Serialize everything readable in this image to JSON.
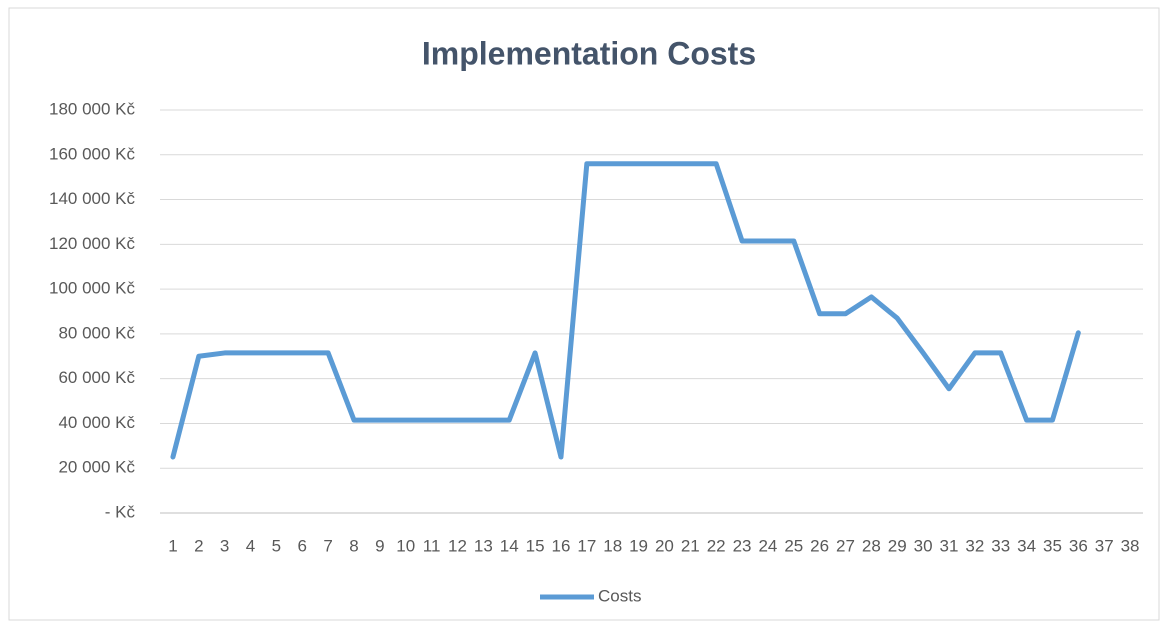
{
  "chart_data": {
    "type": "line",
    "title": "Implementation Costs",
    "categories": [
      "1",
      "2",
      "3",
      "4",
      "5",
      "6",
      "7",
      "8",
      "9",
      "10",
      "11",
      "12",
      "13",
      "14",
      "15",
      "16",
      "17",
      "18",
      "19",
      "20",
      "21",
      "22",
      "23",
      "24",
      "25",
      "26",
      "27",
      "28",
      "29",
      "30",
      "31",
      "32",
      "33",
      "34",
      "35",
      "36",
      "37",
      "38"
    ],
    "series": [
      {
        "name": "Costs",
        "color": "#5b9bd5",
        "values": [
          25000,
          70000,
          71500,
          71500,
          71500,
          71500,
          71500,
          41500,
          41500,
          41500,
          41500,
          41500,
          41500,
          41500,
          71500,
          25000,
          156000,
          156000,
          156000,
          156000,
          156000,
          156000,
          121500,
          121500,
          121500,
          89000,
          89000,
          96500,
          87000,
          71500,
          55500,
          71500,
          71500,
          41500,
          41500,
          80500,
          null,
          null
        ]
      }
    ],
    "ylim": [
      0,
      180000
    ],
    "yticks": [
      {
        "value": 0,
        "label": "-   Kč"
      },
      {
        "value": 20000,
        "label": "20 000 Kč"
      },
      {
        "value": 40000,
        "label": "40 000 Kč"
      },
      {
        "value": 60000,
        "label": "60 000 Kč"
      },
      {
        "value": 80000,
        "label": "80 000 Kč"
      },
      {
        "value": 100000,
        "label": "100 000 Kč"
      },
      {
        "value": 120000,
        "label": "120 000 Kč"
      },
      {
        "value": 140000,
        "label": "140 000 Kč"
      },
      {
        "value": 160000,
        "label": "160 000 Kč"
      },
      {
        "value": 180000,
        "label": "180 000 Kč"
      }
    ],
    "grid": true,
    "legend": "bottom"
  }
}
